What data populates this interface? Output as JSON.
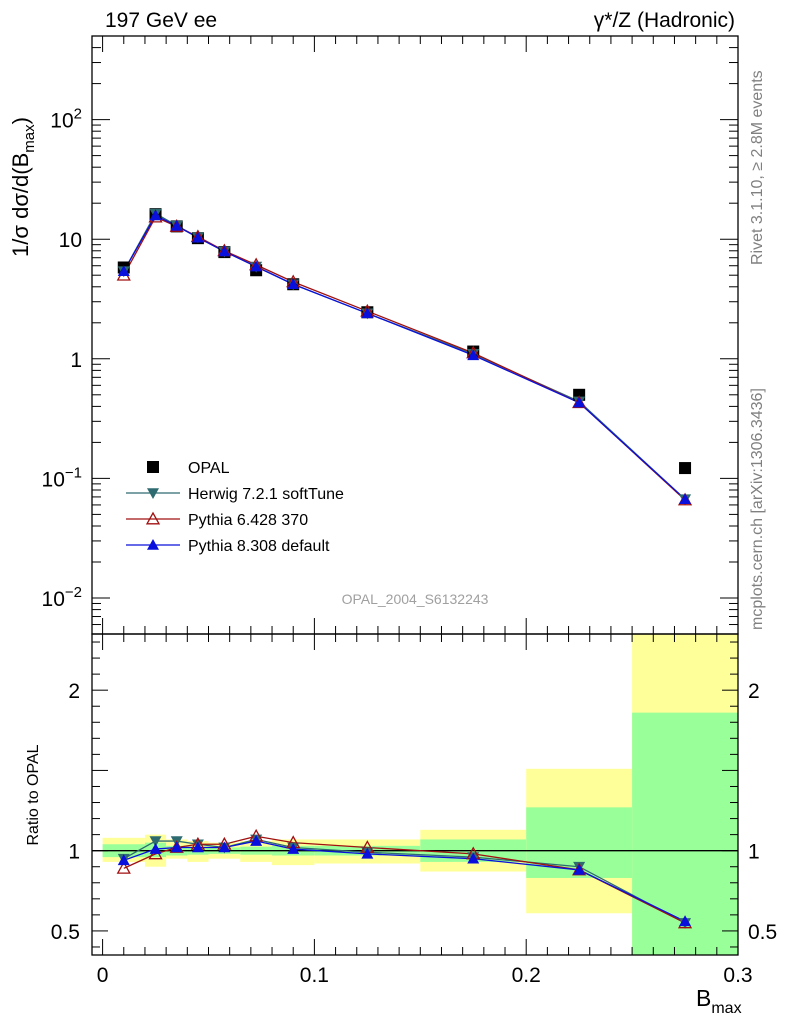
{
  "header": {
    "left": "197 GeV ee",
    "right": "γ*/Z (Hadronic)"
  },
  "side_labels": {
    "rivet": "Rivet 3.1.10, ≥ 2.8M events",
    "mcplots": "mcplots.cern.ch [arXiv:1306.3436]"
  },
  "watermark": "OPAL_2004_S6132243",
  "chart_data": {
    "type": "line",
    "xlabel": "B_max",
    "ylabel_main": "1/σ dσ/d(B_max)",
    "ylabel_ratio": "Ratio to OPAL",
    "xlim": [
      -0.005,
      0.3
    ],
    "ylim_main": [
      0.005,
      500
    ],
    "yscale_main": "log",
    "ylim_ratio": [
      0.35,
      2.35
    ],
    "legend_position": "bottom-left",
    "x_ticks": [
      "0",
      "0.1",
      "0.2",
      "0.3"
    ],
    "main_y_ticks": [
      {
        "value": 0.01,
        "base": "10",
        "exp": "−2"
      },
      {
        "value": 0.1,
        "base": "10",
        "exp": "−1"
      },
      {
        "value": 1,
        "base": "1",
        "exp": ""
      },
      {
        "value": 10,
        "base": "10",
        "exp": ""
      },
      {
        "value": 100,
        "base": "10",
        "exp": "2"
      }
    ],
    "ratio_y_ticks": [
      {
        "value": 0.5,
        "label": "0.5"
      },
      {
        "value": 1,
        "label": "1"
      },
      {
        "value": 2,
        "label": "2"
      }
    ],
    "bin_edges": [
      0,
      0.02,
      0.03,
      0.04,
      0.05,
      0.065,
      0.08,
      0.1,
      0.15,
      0.2,
      0.25,
      0.3
    ],
    "x": [
      0.01,
      0.025,
      0.035,
      0.045,
      0.0575,
      0.0725,
      0.09,
      0.125,
      0.175,
      0.225,
      0.275
    ],
    "ratio_band_stat": [
      [
        0.96,
        1.04
      ],
      [
        0.96,
        1.05
      ],
      [
        0.97,
        1.03
      ],
      [
        0.975,
        1.025
      ],
      [
        0.98,
        1.02
      ],
      [
        0.975,
        1.025
      ],
      [
        0.97,
        1.03
      ],
      [
        0.97,
        1.03
      ],
      [
        0.93,
        1.07
      ],
      [
        0.83,
        1.27
      ],
      [
        0.0,
        1.86
      ]
    ],
    "ratio_band_total": [
      [
        0.93,
        1.08
      ],
      [
        0.9,
        1.1
      ],
      [
        0.95,
        1.07
      ],
      [
        0.93,
        1.06
      ],
      [
        0.95,
        1.05
      ],
      [
        0.93,
        1.06
      ],
      [
        0.91,
        1.07
      ],
      [
        0.92,
        1.07
      ],
      [
        0.87,
        1.13
      ],
      [
        0.61,
        1.51
      ],
      [
        0.0,
        2.35
      ]
    ],
    "series": [
      {
        "name": "OPAL",
        "marker": "square",
        "color": "#000000",
        "values": [
          5.8,
          16.2,
          12.8,
          10.2,
          7.8,
          5.5,
          4.2,
          2.45,
          1.15,
          0.5,
          0.122
        ],
        "ratio": [
          1,
          1,
          1,
          1,
          1,
          1,
          1,
          1,
          1,
          1,
          1
        ]
      },
      {
        "name": "Herwig 7.2.1 softTune",
        "marker": "triangle-down",
        "color": "#2e6b70",
        "values": [
          5.4,
          16.4,
          13.0,
          10.4,
          7.9,
          5.9,
          4.2,
          2.4,
          1.1,
          0.44,
          0.067
        ],
        "ratio": [
          0.95,
          1.06,
          1.06,
          1.04,
          1.02,
          1.07,
          1.02,
          0.99,
          0.96,
          0.9,
          0.55
        ]
      },
      {
        "name": "Pythia 6.428 370",
        "marker": "triangle-open",
        "color": "#a01010",
        "values": [
          5.0,
          15.3,
          12.8,
          10.5,
          8.0,
          6.1,
          4.4,
          2.5,
          1.12,
          0.43,
          0.066
        ],
        "ratio": [
          0.89,
          0.98,
          1.02,
          1.04,
          1.04,
          1.09,
          1.05,
          1.02,
          0.98,
          0.88,
          0.55
        ]
      },
      {
        "name": "Pythia 8.308 default",
        "marker": "triangle-up",
        "color": "#0a10dc",
        "values": [
          5.4,
          15.8,
          12.9,
          10.3,
          7.9,
          5.9,
          4.2,
          2.4,
          1.07,
          0.43,
          0.067
        ],
        "ratio": [
          0.94,
          1.01,
          1.02,
          1.02,
          1.02,
          1.06,
          1.01,
          0.98,
          0.95,
          0.88,
          0.56
        ]
      }
    ]
  }
}
